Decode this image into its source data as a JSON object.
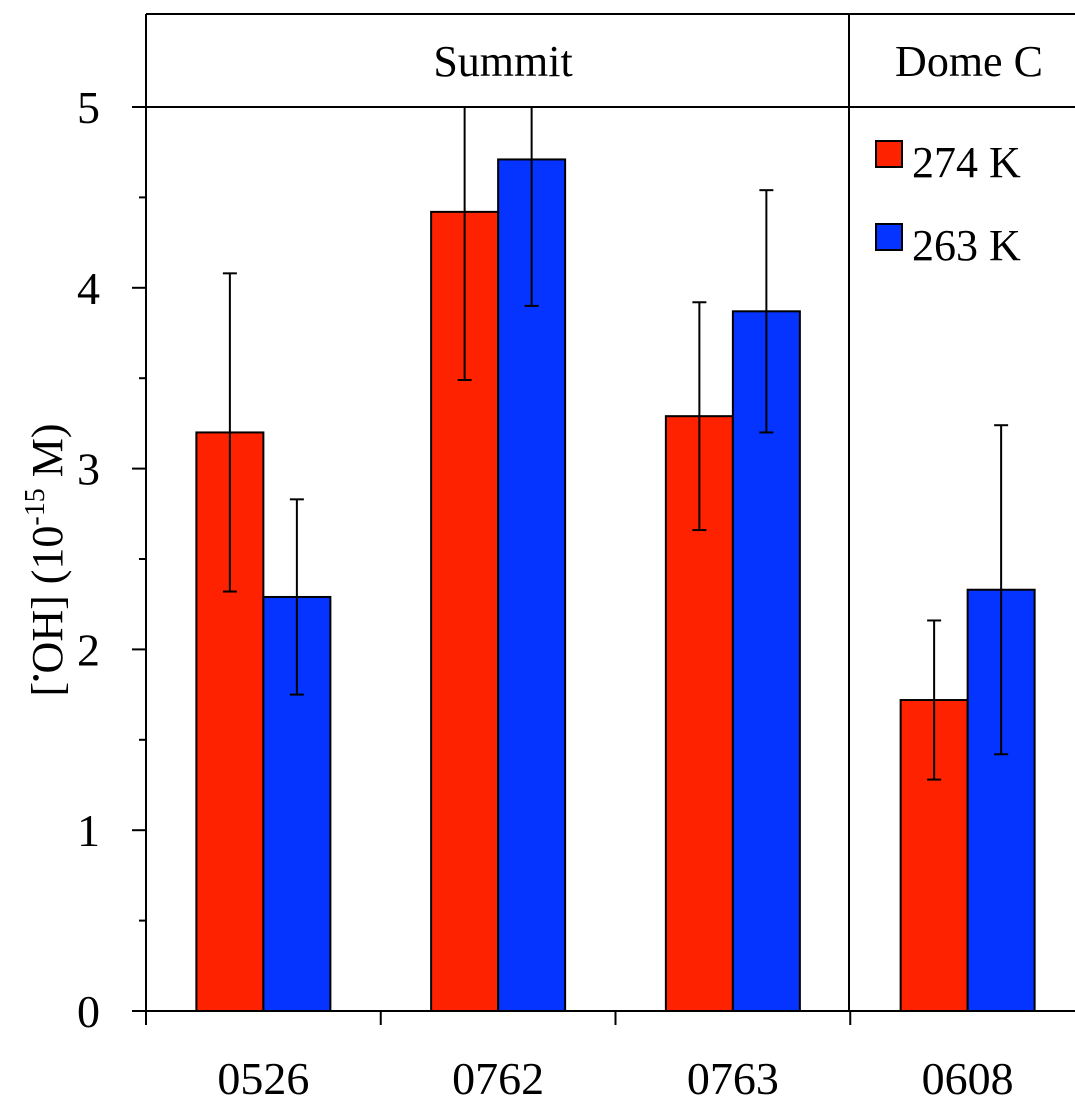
{
  "chart_data": {
    "type": "bar",
    "ylabel_main": "[",
    "ylabel_dot": "•",
    "ylabel_species": "OH] (10",
    "ylabel_exp": "-15",
    "ylabel_unit": " M)",
    "ylim": [
      0,
      5.5
    ],
    "yticks": [
      "0",
      "1",
      "2",
      "3",
      "4",
      "5"
    ],
    "categories": [
      "0526",
      "0762",
      "0763",
      "0608"
    ],
    "groups": [
      {
        "label": "Summit",
        "categories": [
          "0526",
          "0762",
          "0763"
        ]
      },
      {
        "label": "Dome C",
        "categories": [
          "0608"
        ]
      }
    ],
    "series": [
      {
        "name": "274 K",
        "color": "#ff2200",
        "values": [
          3.2,
          4.42,
          3.29,
          1.72
        ],
        "errors": [
          0.88,
          0.93,
          0.63,
          0.44
        ]
      },
      {
        "name": "263 K",
        "color": "#0533ff",
        "values": [
          2.29,
          4.71,
          3.87,
          2.33
        ],
        "errors": [
          0.54,
          0.81,
          0.67,
          0.91
        ]
      }
    ],
    "legend_position": "top-right",
    "grid": false
  }
}
